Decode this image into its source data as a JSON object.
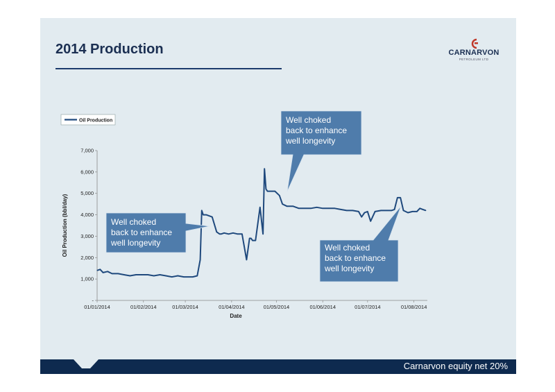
{
  "slide": {
    "title": "2014 Production",
    "logo_text": "CARNARVON",
    "logo_subtext": "PETROLEUM LTD",
    "footer_text": "Carnarvon equity net 20%"
  },
  "colors": {
    "navy": "#0e2a4f",
    "line": "#1f497d",
    "callout": "#4f7cab",
    "logo_red": "#c0392b"
  },
  "callouts": [
    {
      "lines": [
        "Well choked",
        "back to enhance",
        "well longevity"
      ]
    },
    {
      "lines": [
        "Well choked",
        "back to enhance",
        "well longevity"
      ]
    },
    {
      "lines": [
        "Well choked",
        "back to enhance",
        "well longevity"
      ]
    }
  ],
  "chart_data": {
    "type": "line",
    "title": "",
    "xlabel": "Date",
    "ylabel": "Oil Production (bbl/day)",
    "ylim": [
      0,
      7000
    ],
    "yticks": [
      0,
      1000,
      2000,
      3000,
      4000,
      5000,
      6000,
      7000
    ],
    "ytick_labels": [
      "-",
      "1,000",
      "2,000",
      "3,000",
      "4,000",
      "5,000",
      "6,000",
      "7,000"
    ],
    "xlim": [
      "2014-01-01",
      "2014-08-10"
    ],
    "xtick_labels": [
      "01/01/2014",
      "01/02/2014",
      "01/03/2014",
      "01/04/2014",
      "01/05/2014",
      "01/06/2014",
      "01/07/2014",
      "01/08/2014"
    ],
    "xtick_dates": [
      "2014-01-01",
      "2014-02-01",
      "2014-03-01",
      "2014-04-01",
      "2014-05-01",
      "2014-06-01",
      "2014-07-01",
      "2014-08-01"
    ],
    "legend_position": "top-left",
    "series": [
      {
        "name": "Oil Production",
        "x": [
          "2014-01-01",
          "2014-01-03",
          "2014-01-05",
          "2014-01-08",
          "2014-01-11",
          "2014-01-15",
          "2014-01-19",
          "2014-01-23",
          "2014-01-27",
          "2014-01-31",
          "2014-02-04",
          "2014-02-08",
          "2014-02-12",
          "2014-02-16",
          "2014-02-20",
          "2014-02-24",
          "2014-02-28",
          "2014-03-03",
          "2014-03-06",
          "2014-03-09",
          "2014-03-11",
          "2014-03-12",
          "2014-03-13",
          "2014-03-15",
          "2014-03-19",
          "2014-03-22",
          "2014-03-24",
          "2014-03-25",
          "2014-03-27",
          "2014-03-30",
          "2014-04-02",
          "2014-04-05",
          "2014-04-08",
          "2014-04-11",
          "2014-04-13",
          "2014-04-14",
          "2014-04-15",
          "2014-04-17",
          "2014-04-20",
          "2014-04-22",
          "2014-04-23",
          "2014-04-24",
          "2014-04-25",
          "2014-04-26",
          "2014-04-27",
          "2014-04-28",
          "2014-04-30",
          "2014-05-03",
          "2014-05-05",
          "2014-05-08",
          "2014-05-12",
          "2014-05-16",
          "2014-05-20",
          "2014-05-24",
          "2014-05-28",
          "2014-06-01",
          "2014-06-05",
          "2014-06-09",
          "2014-06-13",
          "2014-06-17",
          "2014-06-21",
          "2014-06-25",
          "2014-06-27",
          "2014-06-29",
          "2014-07-01",
          "2014-07-03",
          "2014-07-06",
          "2014-07-10",
          "2014-07-14",
          "2014-07-17",
          "2014-07-19",
          "2014-07-21",
          "2014-07-22",
          "2014-07-23",
          "2014-07-25",
          "2014-07-28",
          "2014-07-31",
          "2014-08-03",
          "2014-08-05",
          "2014-08-07",
          "2014-08-09"
        ],
        "y": [
          1400,
          1450,
          1300,
          1350,
          1250,
          1250,
          1200,
          1150,
          1200,
          1200,
          1200,
          1150,
          1200,
          1150,
          1100,
          1150,
          1100,
          1100,
          1100,
          1150,
          1900,
          4200,
          4000,
          4000,
          3900,
          3200,
          3100,
          3100,
          3150,
          3100,
          3150,
          3100,
          3100,
          1900,
          2900,
          2900,
          2800,
          2800,
          4350,
          3100,
          6150,
          5200,
          5100,
          5100,
          5100,
          5100,
          5100,
          4900,
          4500,
          4400,
          4400,
          4300,
          4300,
          4300,
          4350,
          4300,
          4300,
          4300,
          4250,
          4200,
          4200,
          4150,
          3900,
          4100,
          4150,
          3700,
          4150,
          4200,
          4200,
          4200,
          4250,
          4800,
          4800,
          4800,
          4200,
          4100,
          4150,
          4150,
          4300,
          4250,
          4200
        ]
      }
    ]
  }
}
